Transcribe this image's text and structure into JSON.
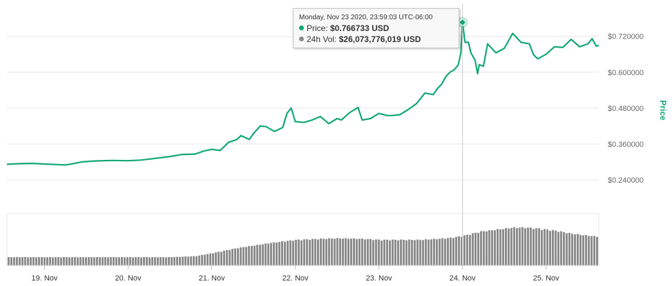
{
  "colors": {
    "price": "#11a774",
    "volume": "#8c8c8c",
    "grid": "#e6e6e6",
    "axis_text": "#666666",
    "crosshair": "#cccccc"
  },
  "tooltip": {
    "date": "Monday, Nov 23 2020, 23:59:03 UTC-06:00",
    "price_label": "Price:",
    "price_value": "$0.766733 USD",
    "volume_label": "24h Vol:",
    "volume_value": "$26,073,776,019 USD"
  },
  "chart_data": {
    "type": "line",
    "ylabel": "Price",
    "y_ticks": [
      "$0.240000",
      "$0.360000",
      "$0.480000",
      "$0.600000",
      "$0.720000"
    ],
    "y_tick_values": [
      0.24,
      0.36,
      0.48,
      0.6,
      0.72
    ],
    "ylim": [
      0.15,
      0.83
    ],
    "x_ticks": [
      "19. Nov",
      "20. Nov",
      "21. Nov",
      "22. Nov",
      "23. Nov",
      "24. Nov",
      "25. Nov"
    ],
    "x_tick_values": [
      19,
      20,
      21,
      22,
      23,
      24,
      25
    ],
    "xlim": [
      18.55,
      25.63
    ],
    "grid": true,
    "crosshair_x": 24.0,
    "highlight": {
      "x": 24.0,
      "y": 0.766733
    },
    "series": [
      {
        "kind": "price",
        "x": [
          18.55,
          18.7,
          18.85,
          19.0,
          19.15,
          19.25,
          19.3,
          19.45,
          19.6,
          19.8,
          20.0,
          20.15,
          20.3,
          20.5,
          20.65,
          20.8,
          20.9,
          21.0,
          21.1,
          21.2,
          21.3,
          21.35,
          21.45,
          21.5,
          21.58,
          21.65,
          21.75,
          21.85,
          21.9,
          21.95,
          22.0,
          22.1,
          22.2,
          22.3,
          22.4,
          22.5,
          22.55,
          22.65,
          22.75,
          22.8,
          22.9,
          23.0,
          23.1,
          23.15,
          23.25,
          23.35,
          23.45,
          23.55,
          23.65,
          23.7,
          23.75,
          23.8,
          23.85,
          23.9,
          23.95,
          23.98,
          24.0,
          24.03,
          24.07,
          24.1,
          24.15,
          24.18,
          24.2,
          24.25,
          24.3,
          24.4,
          24.5,
          24.6,
          24.7,
          24.8,
          24.85,
          24.9,
          25.0,
          25.1,
          25.2,
          25.3,
          25.4,
          25.5,
          25.55,
          25.6,
          25.63
        ],
        "values": [
          0.292,
          0.294,
          0.295,
          0.293,
          0.291,
          0.29,
          0.292,
          0.3,
          0.303,
          0.305,
          0.304,
          0.306,
          0.311,
          0.318,
          0.325,
          0.326,
          0.336,
          0.342,
          0.338,
          0.365,
          0.375,
          0.388,
          0.375,
          0.395,
          0.42,
          0.418,
          0.402,
          0.415,
          0.462,
          0.48,
          0.435,
          0.432,
          0.44,
          0.452,
          0.428,
          0.445,
          0.44,
          0.465,
          0.482,
          0.44,
          0.445,
          0.462,
          0.455,
          0.455,
          0.458,
          0.475,
          0.495,
          0.53,
          0.525,
          0.545,
          0.56,
          0.585,
          0.6,
          0.608,
          0.625,
          0.665,
          0.766733,
          0.7,
          0.7,
          0.665,
          0.64,
          0.595,
          0.625,
          0.62,
          0.695,
          0.665,
          0.68,
          0.73,
          0.7,
          0.695,
          0.658,
          0.645,
          0.66,
          0.685,
          0.683,
          0.71,
          0.685,
          0.695,
          0.712,
          0.687,
          0.69
        ]
      },
      {
        "kind": "volume",
        "x": [
          18.55,
          19.0,
          19.5,
          20.0,
          20.5,
          20.8,
          21.0,
          21.3,
          21.7,
          22.0,
          22.3,
          22.5,
          22.8,
          23.0,
          23.3,
          23.5,
          23.7,
          23.85,
          24.0,
          24.1,
          24.2,
          24.4,
          24.6,
          24.75,
          24.9,
          25.1,
          25.3,
          25.5,
          25.63
        ],
        "values": [
          0.016,
          0.016,
          0.016,
          0.016,
          0.016,
          0.018,
          0.024,
          0.034,
          0.044,
          0.05,
          0.052,
          0.053,
          0.052,
          0.05,
          0.05,
          0.05,
          0.052,
          0.054,
          0.058,
          0.062,
          0.066,
          0.07,
          0.074,
          0.074,
          0.072,
          0.068,
          0.062,
          0.058,
          0.056
        ],
        "max": 0.1
      }
    ]
  }
}
